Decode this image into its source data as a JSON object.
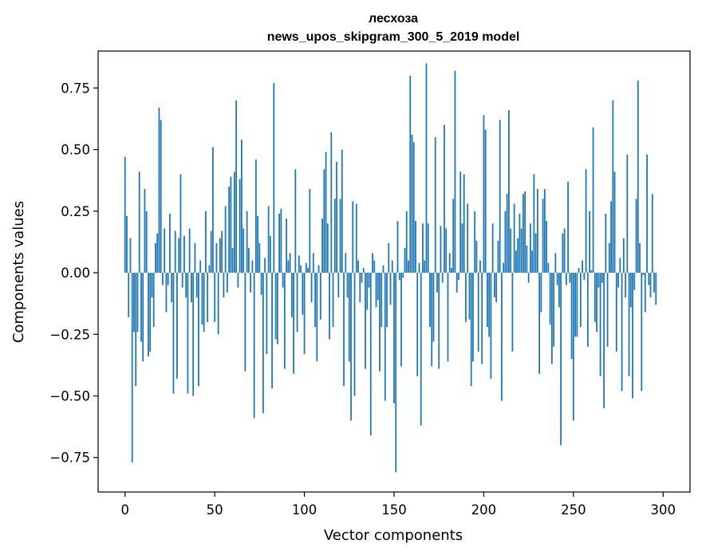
{
  "chart_data": {
    "type": "bar",
    "title": "лесхоза",
    "subtitle": "news_upos_skipgram_300_5_2019 model",
    "xlabel": "Vector components",
    "ylabel": "Components values",
    "xlim": [
      -15,
      315
    ],
    "ylim": [
      -0.89,
      0.9
    ],
    "xticks": [
      0,
      50,
      100,
      150,
      200,
      250,
      300
    ],
    "xtick_labels": [
      "0",
      "50",
      "100",
      "150",
      "200",
      "250",
      "300"
    ],
    "yticks": [
      -0.75,
      -0.5,
      -0.25,
      0.0,
      0.25,
      0.5,
      0.75
    ],
    "ytick_labels": [
      "−0.75",
      "−0.50",
      "−0.25",
      "0.00",
      "0.25",
      "0.50",
      "0.75"
    ],
    "bar_color": "#1f77b4",
    "grid": false,
    "values": [
      0.47,
      0.23,
      -0.18,
      0.14,
      -0.77,
      -0.24,
      -0.46,
      -0.24,
      0.41,
      -0.28,
      -0.36,
      0.34,
      0.25,
      -0.34,
      -0.32,
      -0.1,
      -0.22,
      0.12,
      0.16,
      0.67,
      0.62,
      -0.05,
      0.18,
      -0.16,
      -0.05,
      0.24,
      -0.12,
      -0.49,
      0.17,
      -0.43,
      0.14,
      0.4,
      -0.06,
      0.15,
      -0.1,
      -0.49,
      0.18,
      -0.12,
      -0.5,
      0.12,
      -0.1,
      -0.46,
      0.05,
      -0.21,
      -0.24,
      0.25,
      -0.2,
      0.03,
      0.17,
      0.51,
      -0.2,
      0.12,
      -0.25,
      0.14,
      0.17,
      -0.1,
      0.27,
      -0.08,
      0.35,
      0.39,
      0.1,
      0.41,
      0.7,
      -0.06,
      0.38,
      0.54,
      0.18,
      -0.4,
      0.25,
      0.1,
      -0.08,
      0.05,
      -0.59,
      0.46,
      0.23,
      0.12,
      -0.09,
      -0.57,
      0.06,
      -0.33,
      0.27,
      0.15,
      -0.47,
      0.77,
      -0.27,
      -0.29,
      0.24,
      0.26,
      -0.06,
      -0.39,
      0.22,
      0.05,
      0.08,
      -0.18,
      -0.41,
      0.42,
      -0.24,
      0.07,
      0.03,
      -0.17,
      -0.33,
      0.04,
      0.02,
      0.34,
      -0.12,
      0.08,
      -0.22,
      -0.36,
      0.03,
      -0.19,
      0.22,
      0.42,
      0.49,
      0.2,
      -0.27,
      0.57,
      -0.22,
      0.3,
      0.45,
      -0.1,
      0.3,
      0.5,
      -0.46,
      0.08,
      -0.1,
      -0.36,
      -0.6,
      0.29,
      -0.5,
      0.28,
      0.05,
      -0.12,
      -0.04,
      0.02,
      -0.39,
      -0.15,
      -0.06,
      -0.66,
      0.08,
      0.05,
      -0.14,
      -0.11,
      -0.4,
      -0.22,
      0.03,
      -0.52,
      -0.22,
      0.12,
      -0.13,
      0.05,
      -0.53,
      -0.81,
      0.21,
      -0.03,
      -0.38,
      -0.02,
      0.1,
      0.25,
      0.05,
      0.8,
      0.56,
      0.53,
      0.21,
      -0.42,
      0.04,
      -0.62,
      0.2,
      0.05,
      0.85,
      0.2,
      -0.22,
      -0.38,
      -0.28,
      0.55,
      -0.08,
      -0.39,
      0.19,
      -0.04,
      0.6,
      0.18,
      -0.36,
      0.08,
      0.02,
      0.3,
      0.82,
      -0.08,
      -0.03,
      0.41,
      0.2,
      0.4,
      -0.2,
      0.28,
      -0.19,
      -0.46,
      -0.36,
      0.25,
      0.13,
      -0.32,
      0.05,
      -0.37,
      0.64,
      0.58,
      -0.22,
      -0.26,
      -0.43,
      0.2,
      -0.1,
      -0.12,
      0.13,
      0.62,
      -0.52,
      0.04,
      0.25,
      0.32,
      0.66,
      0.18,
      -0.32,
      0.28,
      0.09,
      0.14,
      0.24,
      0.18,
      0.32,
      0.33,
      0.11,
      -0.04,
      0.2,
      0.09,
      0.4,
      0.16,
      0.34,
      -0.41,
      -0.16,
      0.3,
      0.34,
      0.21,
      0.04,
      -0.21,
      -0.37,
      -0.3,
      0.08,
      -0.05,
      -0.14,
      -0.7,
      0.16,
      0.18,
      -0.05,
      0.37,
      -0.04,
      -0.35,
      -0.6,
      -0.26,
      -0.26,
      0.02,
      -0.22,
      0.05,
      -0.03,
      0.42,
      -0.3,
      0.25,
      0.01,
      0.59,
      -0.2,
      -0.24,
      -0.06,
      -0.42,
      -0.04,
      -0.55,
      0.24,
      -0.3,
      0.12,
      0.29,
      0.7,
      0.41,
      -0.32,
      -0.06,
      0.06,
      -0.48,
      0.14,
      -0.1,
      0.48,
      -0.42,
      -0.14,
      -0.51,
      -0.07,
      0.3,
      0.78,
      0.12,
      -0.48,
      -0.01,
      -0.16,
      0.48,
      -0.05,
      -0.1,
      0.32,
      -0.08,
      -0.13,
      0.0,
      0.0,
      0.0
    ]
  }
}
